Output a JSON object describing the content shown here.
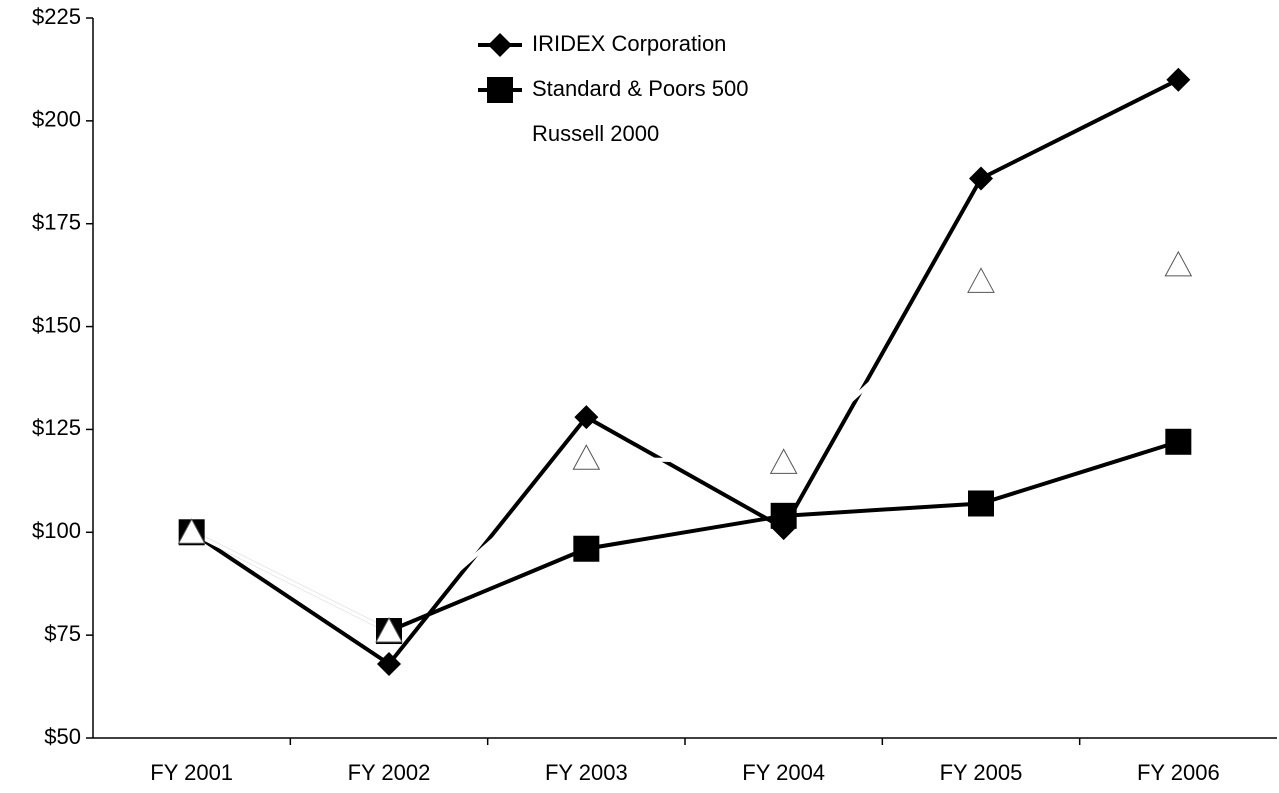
{
  "chart_data": {
    "type": "line",
    "categories": [
      "FY 2001",
      "FY 2002",
      "FY 2003",
      "FY 2004",
      "FY 2005",
      "FY 2006"
    ],
    "series": [
      {
        "name": "IRIDEX Corporation",
        "color": "#000000",
        "marker": "diamond",
        "values": [
          100,
          68,
          128,
          101,
          186,
          210
        ]
      },
      {
        "name": "Standard & Poors 500",
        "color": "#000000",
        "marker": "square",
        "values": [
          100,
          76,
          96,
          104,
          107,
          122
        ]
      },
      {
        "name": "Russell 2000",
        "color": "#ffffff",
        "marker": "triangle",
        "values": [
          100,
          76,
          118,
          117,
          161,
          165
        ]
      }
    ],
    "ylim": [
      50,
      225
    ],
    "yticks": [
      {
        "value": 50,
        "label": "$50"
      },
      {
        "value": 75,
        "label": "$75"
      },
      {
        "value": 100,
        "label": "$100"
      },
      {
        "value": 125,
        "label": "$125"
      },
      {
        "value": 150,
        "label": "$150"
      },
      {
        "value": 175,
        "label": "$175"
      },
      {
        "value": 200,
        "label": "$200"
      },
      {
        "value": 225,
        "label": "$225"
      }
    ],
    "legend": "top"
  }
}
